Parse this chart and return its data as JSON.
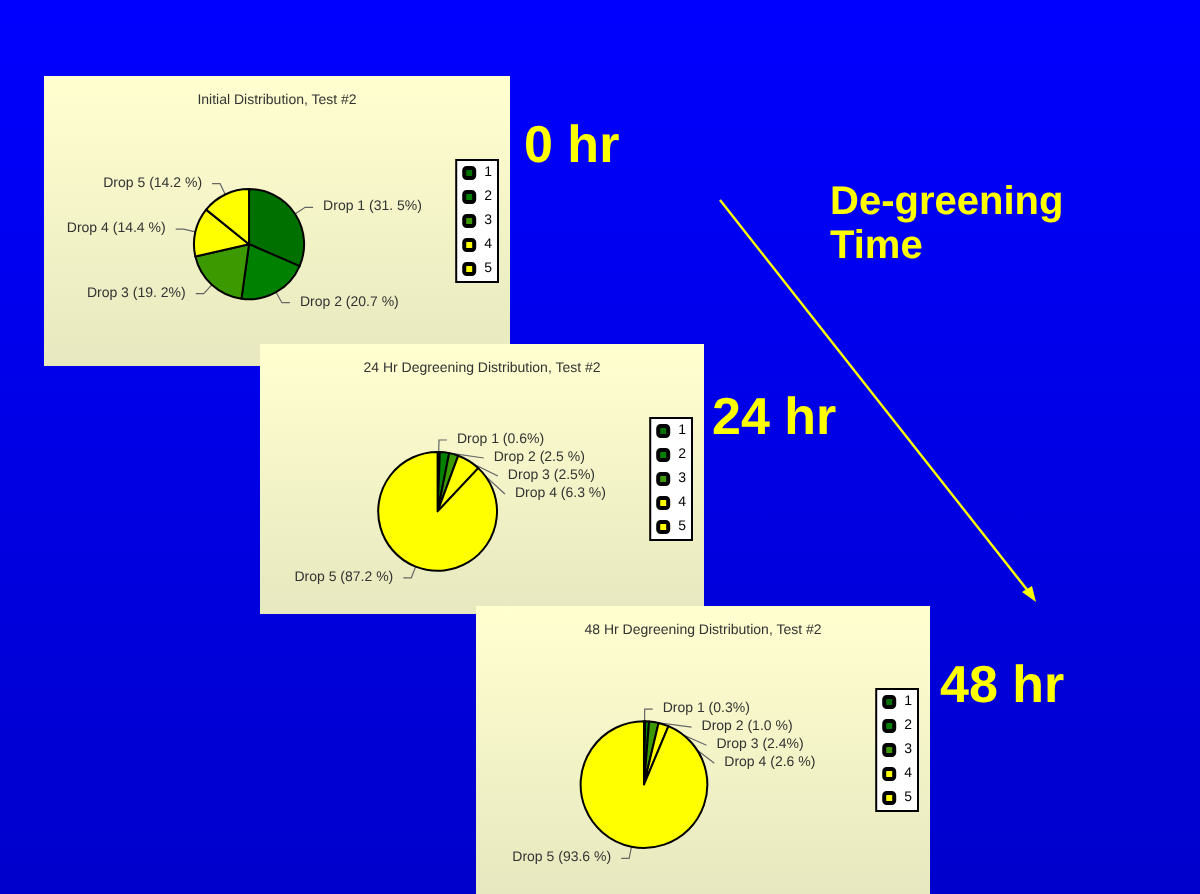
{
  "chart_data": [
    {
      "type": "pie",
      "title": "Initial Distribution, Test #2",
      "categories": [
        "1",
        "2",
        "3",
        "4",
        "5"
      ],
      "values": [
        31.5,
        20.7,
        19.2,
        14.4,
        14.2
      ],
      "colors": [
        "#007000",
        "#008000",
        "#3c9a00",
        "#ffff00",
        "#ffff00"
      ],
      "value_labels": [
        "Drop 1 (31. 5%)",
        "Drop 2 (20.7 %)",
        "Drop 3 (19. 2%)",
        "Drop 4 (14.4 %)",
        "Drop 5 (14.2 %)"
      ],
      "legend": "right",
      "annotations": [
        "0 hr",
        "De-greening Time"
      ]
    },
    {
      "type": "pie",
      "title": "24 Hr Degreening Distribution, Test #2",
      "categories": [
        "1",
        "2",
        "3",
        "4",
        "5"
      ],
      "values": [
        0.6,
        2.5,
        2.5,
        6.3,
        87.2
      ],
      "colors": [
        "#007000",
        "#008000",
        "#3c9a00",
        "#ffff00",
        "#ffff00"
      ],
      "value_labels": [
        "Drop 1 (0.6%)",
        "Drop 2 (2.5 %)",
        "Drop 3 (2.5%)",
        "Drop 4 (6.3 %)",
        "Drop 5 (87.2 %)"
      ],
      "legend": "right",
      "annotations": [
        "24 hr"
      ]
    },
    {
      "type": "pie",
      "title": "48 Hr Degreening Distribution, Test #2",
      "categories": [
        "1",
        "2",
        "3",
        "4",
        "5"
      ],
      "values": [
        0.3,
        1.0,
        2.4,
        2.6,
        93.6
      ],
      "colors": [
        "#007000",
        "#008000",
        "#3c9a00",
        "#ffff00",
        "#ffff00"
      ],
      "value_labels": [
        "Drop 1 (0.3%)",
        "Drop 2 (1.0 %)",
        "Drop 3 (2.4%)",
        "Drop 4 (2.6 %)",
        "Drop 5 (93.6 %)"
      ],
      "legend": "right",
      "annotations": [
        "48 hr"
      ]
    }
  ]
}
